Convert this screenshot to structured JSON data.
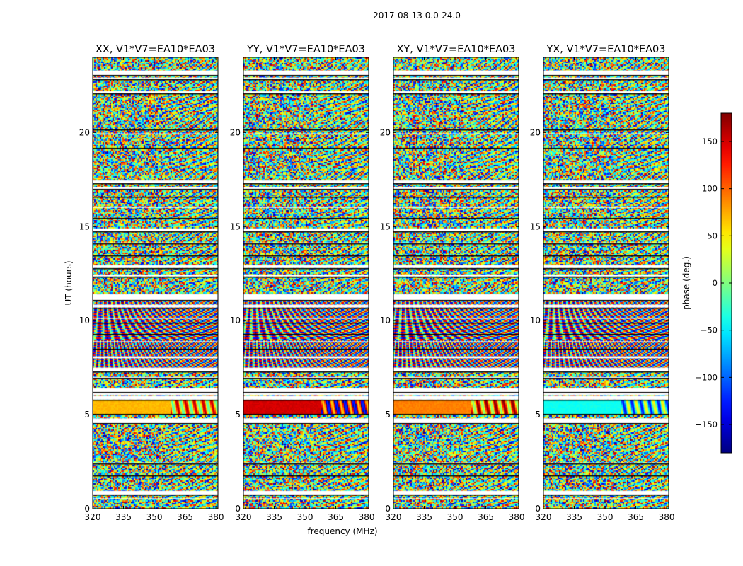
{
  "chart_data": {
    "type": "heatmap",
    "suptitle": "2017-08-13 0.0-24.0",
    "xlabel": "frequency (MHz)",
    "ylabel": "UT (hours)",
    "xlim": [
      320,
      381
    ],
    "ylim": [
      0,
      24
    ],
    "xticks": [
      320,
      335,
      350,
      365,
      380
    ],
    "yticks": [
      0,
      5,
      10,
      15,
      20
    ],
    "panels": [
      {
        "title": "XX, V1*V7=EA10*EA03",
        "calibrator_phase_deg": 70
      },
      {
        "title": "YY, V1*V7=EA10*EA03",
        "calibrator_phase_deg": 150
      },
      {
        "title": "XY, V1*V7=EA10*EA03",
        "calibrator_phase_deg": 90
      },
      {
        "title": "YX, V1*V7=EA10*EA03",
        "calibrator_phase_deg": -40
      }
    ],
    "colorbar": {
      "label": "phase (deg.)",
      "range": [
        -180,
        180
      ],
      "ticks": [
        -150,
        -100,
        -50,
        0,
        50,
        100,
        150
      ],
      "tick_labels": [
        "−150",
        "−100",
        "−50",
        "0",
        "50",
        "100",
        "150"
      ],
      "colormap": "jet"
    },
    "data_gaps_hours": [
      [
        23.05,
        23.3
      ],
      [
        22.85,
        22.92
      ],
      [
        22.1,
        22.2
      ],
      [
        19.9,
        19.95
      ],
      [
        17.3,
        17.45
      ],
      [
        17.0,
        17.1
      ],
      [
        16.0,
        16.05
      ],
      [
        14.75,
        14.9
      ],
      [
        14.1,
        14.15
      ],
      [
        12.8,
        12.95
      ],
      [
        12.35,
        12.45
      ],
      [
        11.1,
        11.4
      ],
      [
        10.7,
        10.85
      ],
      [
        10.1,
        10.15
      ],
      [
        8.85,
        8.9
      ],
      [
        8.0,
        8.1
      ],
      [
        7.3,
        7.5
      ],
      [
        6.95,
        7.0
      ],
      [
        6.05,
        6.4
      ],
      [
        5.8,
        6.0
      ],
      [
        4.55,
        4.8
      ],
      [
        2.4,
        2.45
      ],
      [
        0.75,
        0.95
      ],
      [
        0.5,
        0.55
      ]
    ],
    "scan_boundaries_hours": [
      23.05,
      22.85,
      22.1,
      20.15,
      19.2,
      17.3,
      17.0,
      16.6,
      15.45,
      14.75,
      14.1,
      13.45,
      12.8,
      12.35,
      11.1,
      10.7,
      9.9,
      9.3,
      8.5,
      7.3,
      6.95,
      6.2,
      5.8,
      5.05,
      4.55,
      2.4,
      1.75,
      0.75
    ]
  }
}
